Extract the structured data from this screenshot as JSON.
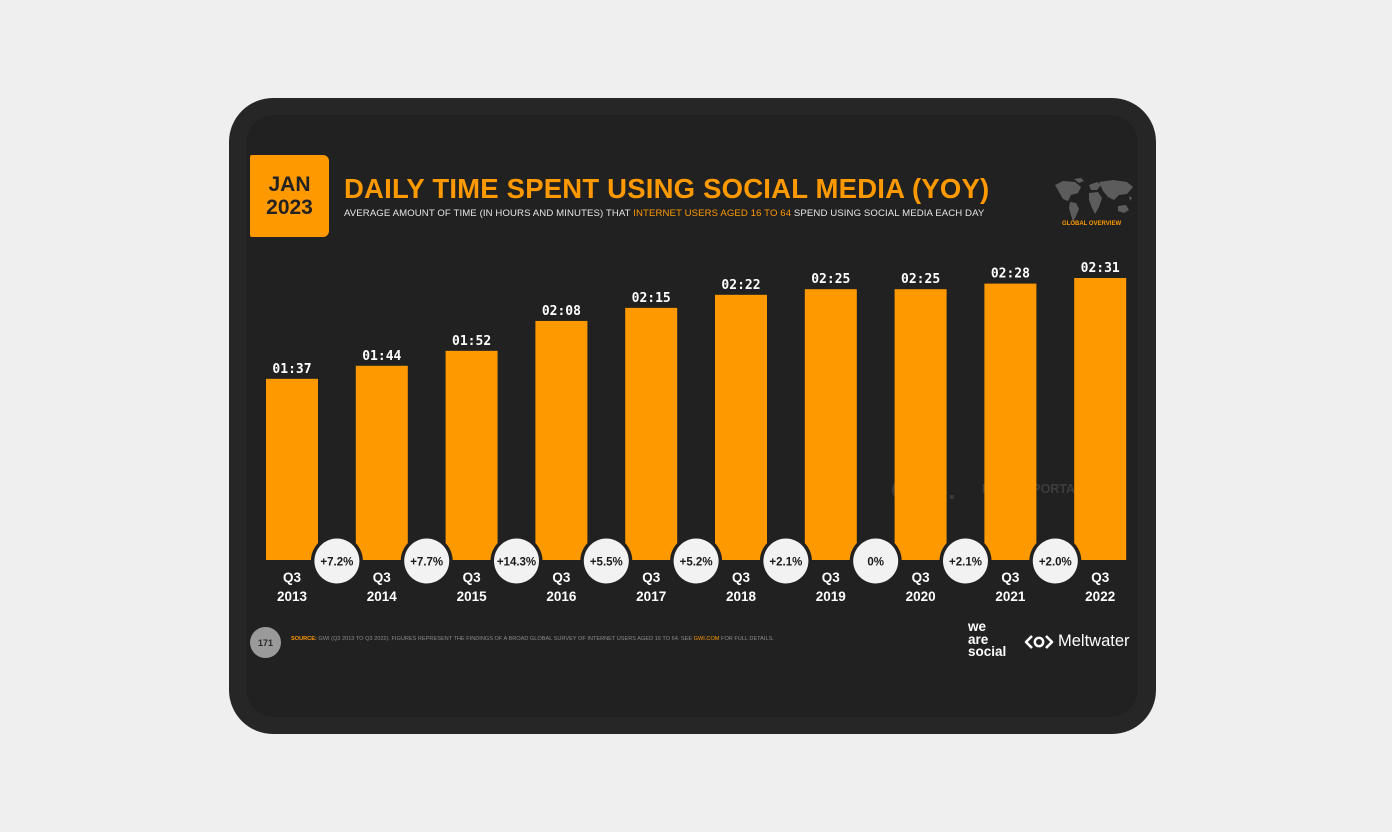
{
  "badge": {
    "month": "JAN",
    "year": "2023"
  },
  "title": "DAILY TIME SPENT USING SOCIAL MEDIA (YOY)",
  "subtitle": {
    "before": "AVERAGE AMOUNT OF TIME (IN HOURS AND MINUTES) THAT ",
    "highlight": "INTERNET USERS AGED 16 TO 64",
    "after": " SPEND USING SOCIAL MEDIA EACH DAY"
  },
  "map_label": "GLOBAL OVERVIEW",
  "watermarks": {
    "gwi": "GWI.",
    "datareportal": "DATAREPORTAL"
  },
  "footer": {
    "page_number": "171",
    "source_label": "SOURCE:",
    "source_text": " GWI (Q3 2013 TO Q3 2022). FIGURES REPRESENT THE FINDINGS OF A BROAD GLOBAL SURVEY OF INTERNET USERS AGED 16 TO 64. SEE ",
    "source_link": "GWI.COM",
    "source_end": " FOR FULL DETAILS."
  },
  "logos": {
    "we_are_social": [
      "we",
      "are",
      "social"
    ],
    "meltwater": "Meltwater"
  },
  "colors": {
    "accent": "#ff9900",
    "background": "#212121",
    "frame": "#262626",
    "page": "#efefef",
    "pill": "#f2f2f2"
  },
  "chart_data": {
    "type": "bar",
    "categories": [
      [
        "Q3",
        "2013"
      ],
      [
        "Q3",
        "2014"
      ],
      [
        "Q3",
        "2015"
      ],
      [
        "Q3",
        "2016"
      ],
      [
        "Q3",
        "2017"
      ],
      [
        "Q3",
        "2018"
      ],
      [
        "Q3",
        "2019"
      ],
      [
        "Q3",
        "2020"
      ],
      [
        "Q3",
        "2021"
      ],
      [
        "Q3",
        "2022"
      ]
    ],
    "labels": [
      "01:37",
      "01:44",
      "01:52",
      "02:08",
      "02:15",
      "02:22",
      "02:25",
      "02:25",
      "02:28",
      "02:31"
    ],
    "values": [
      97,
      104,
      112,
      128,
      135,
      142,
      145,
      145,
      148,
      151
    ],
    "unit": "minutes",
    "yoy_changes": [
      "+7.2%",
      "+7.7%",
      "+14.3%",
      "+5.5%",
      "+5.2%",
      "+2.1%",
      "0%",
      "+2.1%",
      "+2.0%"
    ],
    "ylim": [
      0,
      151
    ],
    "grid": false,
    "color": "#ff9900"
  }
}
